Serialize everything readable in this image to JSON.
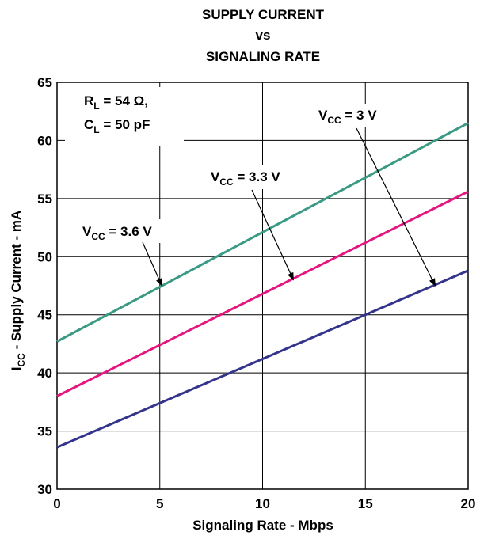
{
  "chart_data": {
    "type": "line",
    "title_lines": [
      "SUPPLY CURRENT",
      "vs",
      "SIGNALING RATE"
    ],
    "xlabel": "Signaling Rate - Mbps",
    "ylabel_main": "I",
    "ylabel_sub": "CC",
    "ylabel_rest": " - Supply Current - mA",
    "xlim": [
      0,
      20
    ],
    "ylim": [
      30,
      65
    ],
    "xticks": [
      0,
      5,
      10,
      15,
      20
    ],
    "yticks": [
      30,
      35,
      40,
      45,
      50,
      55,
      60,
      65
    ],
    "grid": true,
    "conditions": {
      "rl_main": "R",
      "rl_sub": "L",
      "rl_value": " = 54 Ω,",
      "cl_main": "C",
      "cl_sub": "L",
      "cl_value": " = 50 pF"
    },
    "series": [
      {
        "label_main": "V",
        "label_sub": "CC",
        "label_value": " = 3.6 V",
        "color": "#3a9a83",
        "x": [
          0,
          20
        ],
        "y": [
          42.7,
          61.5
        ],
        "arrow_to": [
          5.1,
          47.5
        ]
      },
      {
        "label_main": "V",
        "label_sub": "CC",
        "label_value": " = 3.3 V",
        "color": "#e5157f",
        "x": [
          0,
          20
        ],
        "y": [
          38.0,
          55.6
        ],
        "arrow_to": [
          11.5,
          48.0
        ]
      },
      {
        "label_main": "V",
        "label_sub": "CC",
        "label_value": " = 3 V",
        "color": "#34348c",
        "x": [
          0,
          20
        ],
        "y": [
          33.6,
          48.8
        ],
        "arrow_to": [
          18.4,
          47.5
        ]
      }
    ]
  }
}
